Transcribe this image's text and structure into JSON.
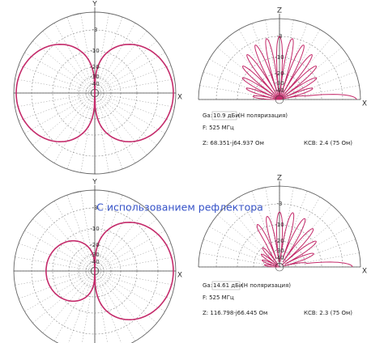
{
  "title": "С использованием рефлектора",
  "panels": [
    {
      "axis_top": "Y",
      "axis_right": "X",
      "rings": [
        "-3",
        "-10",
        "-20",
        "-30",
        "-40"
      ]
    },
    {
      "axis_top": "Z",
      "axis_right": "X",
      "rings": [
        "-3",
        "-10",
        "-20",
        "-30",
        "-40"
      ]
    },
    {
      "axis_top": "Y",
      "axis_right": "X",
      "rings": [
        "-3",
        "-10",
        "-20",
        "-30",
        "-40"
      ]
    },
    {
      "axis_top": "Z",
      "axis_right": "X",
      "rings": [
        "-3",
        "-10",
        "-20",
        "-30",
        "-40"
      ]
    }
  ],
  "info": [
    {
      "ga_label": "Ga:",
      "ga_value": "10.9 дБи",
      "polarization": "(H поляризация)",
      "frequency": "F: 525 МГц",
      "impedance": "Z: 68.351-j64.937 Ом",
      "swr": "КСВ: 2.4 (75 Ом)"
    },
    {
      "ga_label": "Ga:",
      "ga_value": "14.61 дБи",
      "polarization": "(H поляризация)",
      "frequency": "F: 525 МГц",
      "impedance": "Z: 116.798-j66.445 Ом",
      "swr": "КСВ: 2.3 (75 Ом)"
    }
  ]
}
